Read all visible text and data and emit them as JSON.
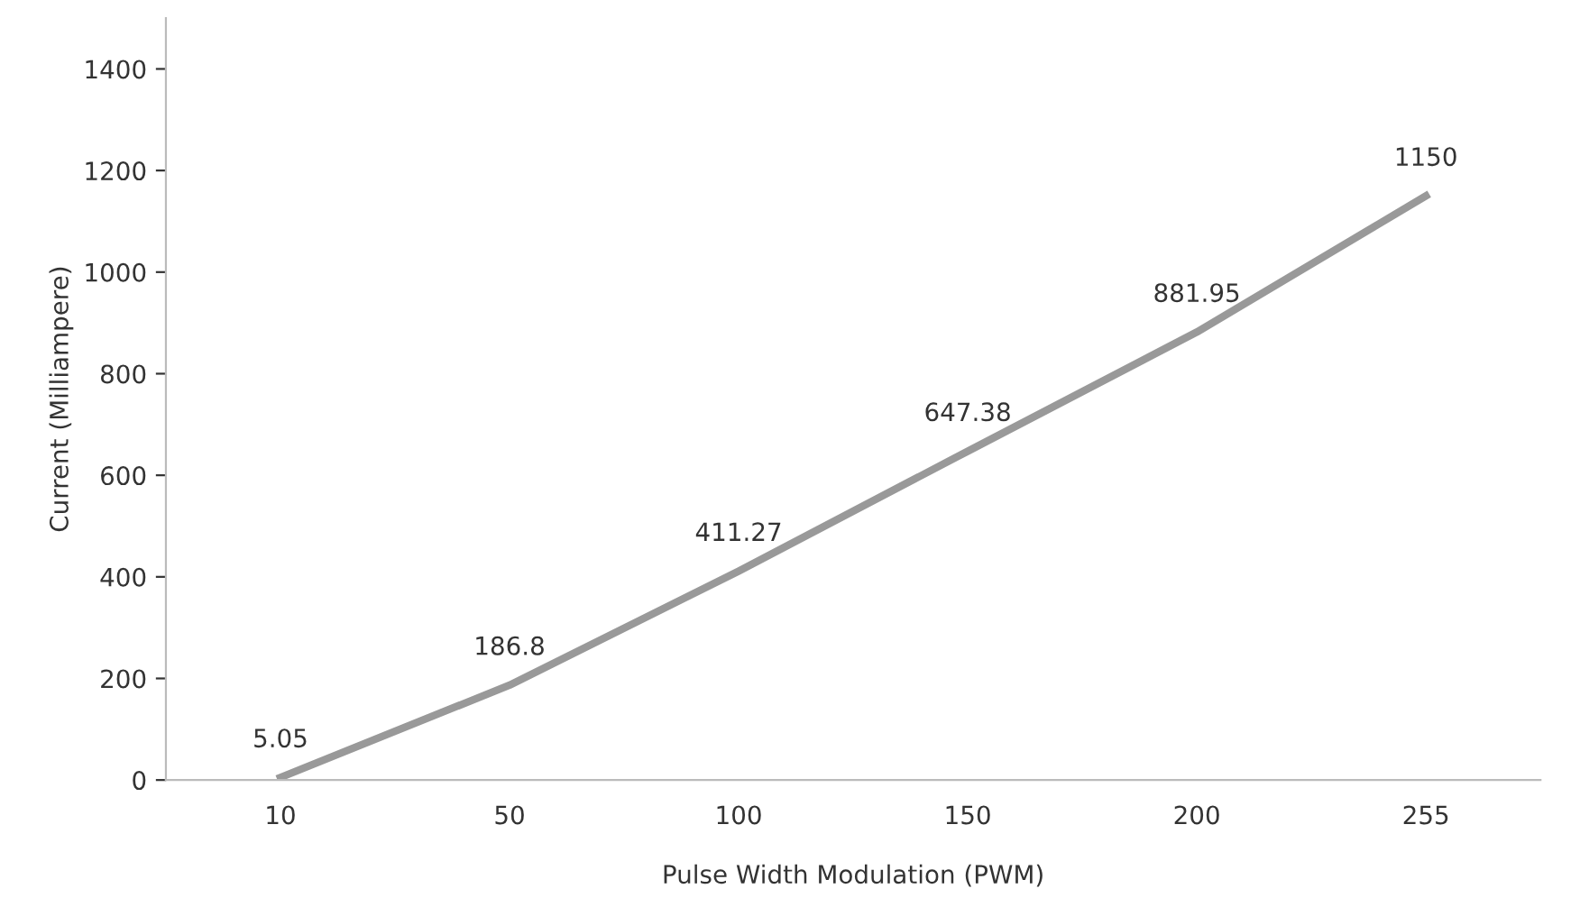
{
  "chart_data": {
    "type": "line",
    "xlabel": "Pulse Width Modulation (PWM)",
    "ylabel": "Current (Milliampere)",
    "categories": [
      "10",
      "50",
      "100",
      "150",
      "200",
      "255"
    ],
    "series": [
      {
        "color": "#999999",
        "values": [
          5.05,
          186.8,
          411.27,
          647.38,
          881.95,
          1150
        ]
      }
    ],
    "ylim": [
      0,
      1500
    ],
    "yticks": [
      0,
      200,
      400,
      600,
      800,
      1000,
      1200,
      1400
    ],
    "data_labels": true,
    "grid": false,
    "legend": false,
    "marker": "none",
    "line_style": "solid"
  }
}
